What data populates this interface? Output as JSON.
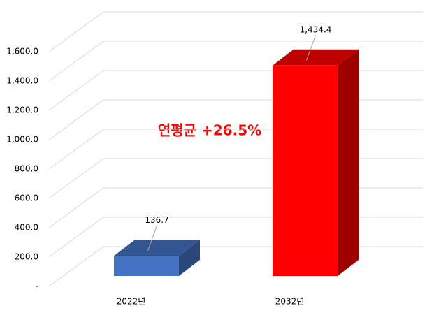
{
  "chart_data": {
    "type": "bar3d",
    "categories": [
      "2022년",
      "2032년"
    ],
    "values": [
      136.7,
      1434.4
    ],
    "value_labels": [
      "136.7",
      "1,434.4"
    ],
    "colors": [
      "#4472c4",
      "#ff0000"
    ],
    "annotation": "연평균 +26.5%",
    "ylim": [
      0,
      1600
    ],
    "yticks": [
      {
        "value": 0,
        "label": "-"
      },
      {
        "value": 200,
        "label": "200.0"
      },
      {
        "value": 400,
        "label": "400.0"
      },
      {
        "value": 600,
        "label": "600.0"
      },
      {
        "value": 800,
        "label": "800.0"
      },
      {
        "value": 1000,
        "label": "1,000.0"
      },
      {
        "value": 1200,
        "label": "1,200.0"
      },
      {
        "value": 1400,
        "label": "1,400.0"
      },
      {
        "value": 1600,
        "label": "1,600.0"
      }
    ],
    "grid": true
  }
}
